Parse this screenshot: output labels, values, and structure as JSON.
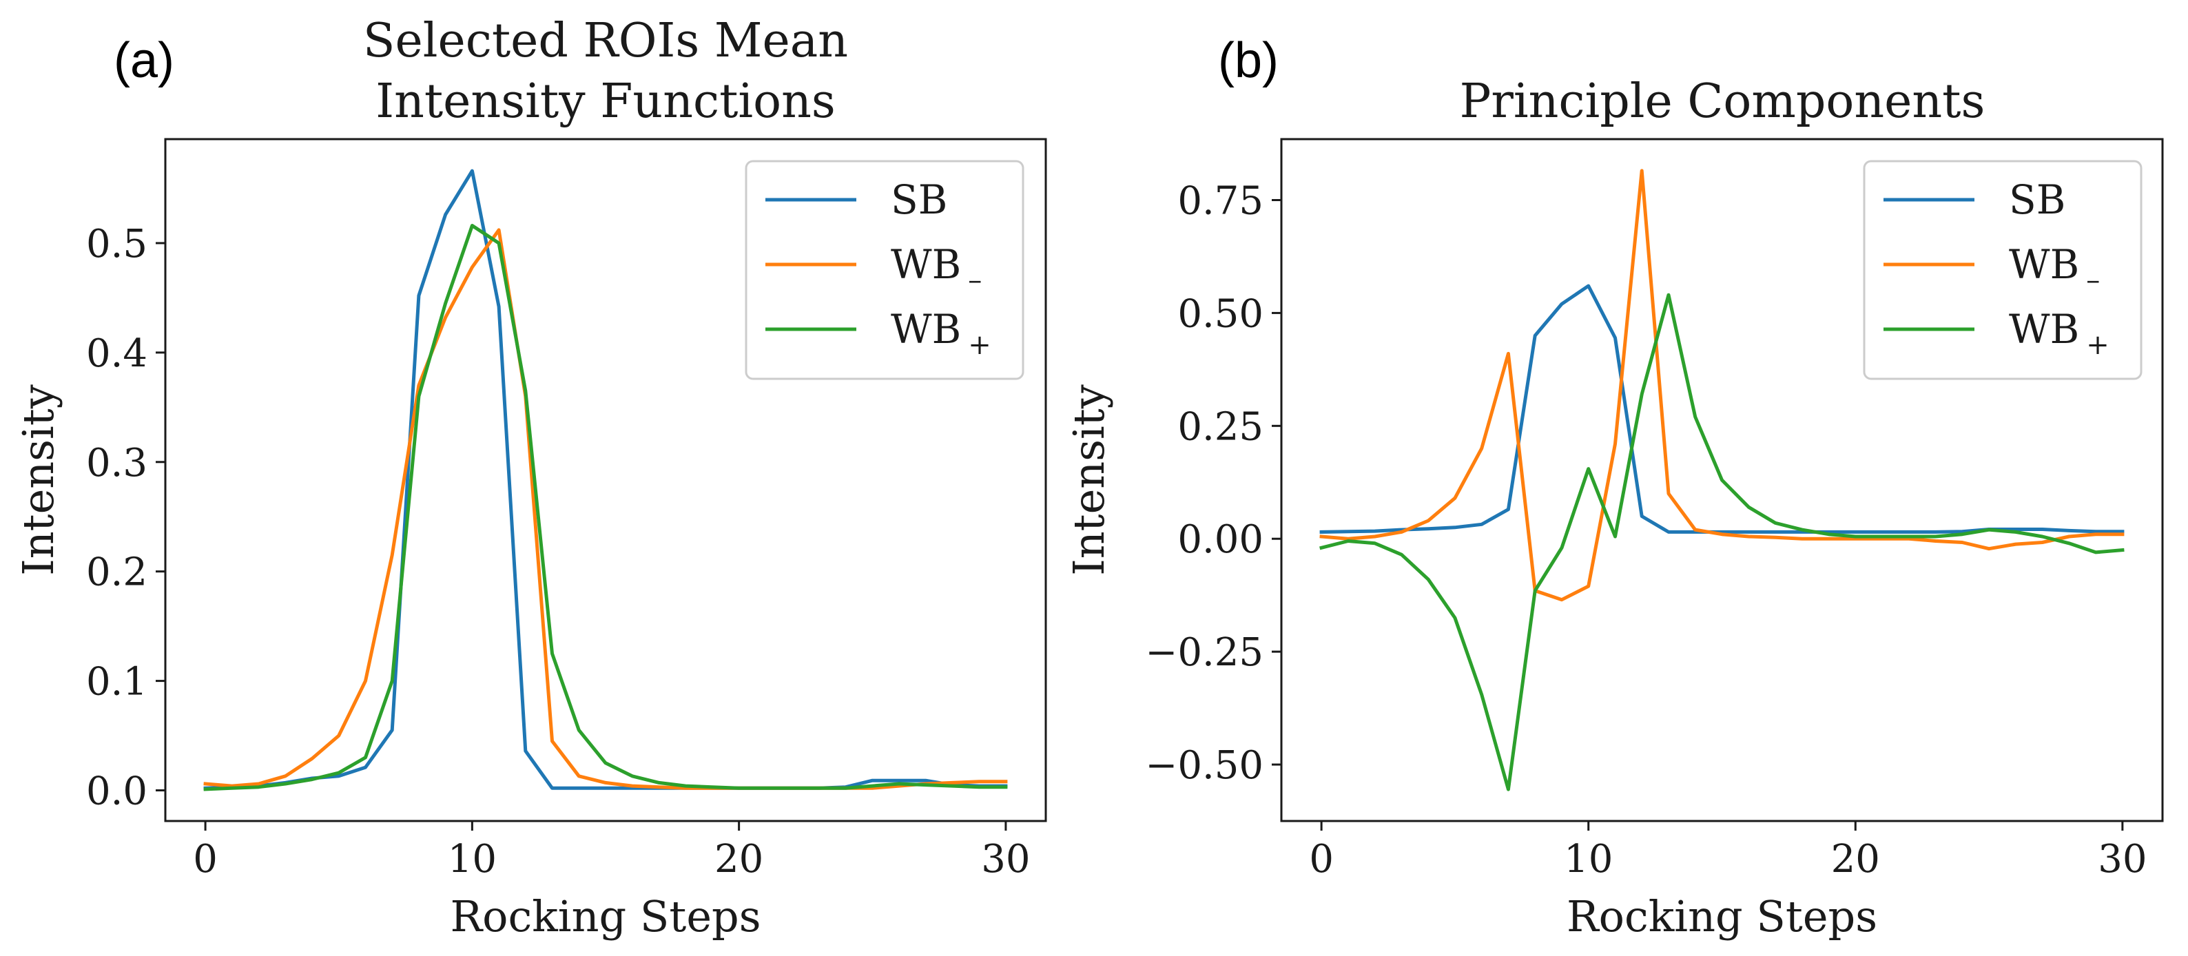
{
  "chart_data": [
    {
      "panel_label": "(a)",
      "type": "line",
      "title": [
        "Selected ROIs Mean",
        "Intensity Functions"
      ],
      "xlabel": "Rocking Steps",
      "ylabel": "Intensity",
      "xlim": [
        -1.5,
        31.5
      ],
      "ylim": [
        -0.028,
        0.595
      ],
      "xticks": [
        0,
        10,
        20,
        30
      ],
      "xtick_labels": [
        "0",
        "10",
        "20",
        "30"
      ],
      "yticks": [
        0.0,
        0.1,
        0.2,
        0.3,
        0.4,
        0.5
      ],
      "ytick_labels": [
        "0.0",
        "0.1",
        "0.2",
        "0.3",
        "0.4",
        "0.5"
      ],
      "grid": false,
      "legend_position": "top-right",
      "x": [
        0,
        1,
        2,
        3,
        4,
        5,
        6,
        7,
        8,
        9,
        10,
        11,
        12,
        13,
        14,
        15,
        16,
        17,
        18,
        19,
        20,
        21,
        22,
        23,
        24,
        25,
        26,
        27,
        28,
        29,
        30
      ],
      "series": [
        {
          "name": "SB",
          "legend_base": "SB",
          "legend_sub": "",
          "color": "#1f77b4",
          "values": [
            0.002,
            0.003,
            0.004,
            0.007,
            0.011,
            0.013,
            0.021,
            0.055,
            0.452,
            0.526,
            0.566,
            0.442,
            0.036,
            0.002,
            0.002,
            0.002,
            0.002,
            0.002,
            0.002,
            0.002,
            0.002,
            0.002,
            0.002,
            0.002,
            0.003,
            0.009,
            0.009,
            0.009,
            0.005,
            0.004,
            0.004
          ]
        },
        {
          "name": "WB-",
          "legend_base": "WB",
          "legend_sub": "–",
          "color": "#ff7f0e",
          "values": [
            0.006,
            0.004,
            0.006,
            0.013,
            0.029,
            0.05,
            0.1,
            0.215,
            0.37,
            0.432,
            0.478,
            0.512,
            0.36,
            0.045,
            0.013,
            0.007,
            0.004,
            0.003,
            0.002,
            0.002,
            0.002,
            0.002,
            0.002,
            0.002,
            0.002,
            0.002,
            0.004,
            0.006,
            0.007,
            0.008,
            0.008
          ]
        },
        {
          "name": "WB+",
          "legend_base": "WB",
          "legend_sub": "+",
          "color": "#2ca02c",
          "values": [
            0.001,
            0.002,
            0.003,
            0.006,
            0.01,
            0.016,
            0.03,
            0.1,
            0.36,
            0.445,
            0.516,
            0.5,
            0.365,
            0.125,
            0.055,
            0.025,
            0.013,
            0.007,
            0.004,
            0.003,
            0.002,
            0.002,
            0.002,
            0.002,
            0.002,
            0.004,
            0.006,
            0.005,
            0.004,
            0.003,
            0.003
          ]
        }
      ]
    },
    {
      "panel_label": "(b)",
      "type": "line",
      "title": [
        "Principle Components"
      ],
      "xlabel": "Rocking Steps",
      "ylabel": "Intensity",
      "xlim": [
        -1.5,
        31.5
      ],
      "ylim": [
        -0.625,
        0.885
      ],
      "xticks": [
        0,
        10,
        20,
        30
      ],
      "xtick_labels": [
        "0",
        "10",
        "20",
        "30"
      ],
      "yticks": [
        -0.5,
        -0.25,
        0.0,
        0.25,
        0.5,
        0.75
      ],
      "ytick_labels": [
        "−0.50",
        "−0.25",
        "0.00",
        "0.25",
        "0.50",
        "0.75"
      ],
      "grid": false,
      "legend_position": "top-right",
      "x": [
        0,
        1,
        2,
        3,
        4,
        5,
        6,
        7,
        8,
        9,
        10,
        11,
        12,
        13,
        14,
        15,
        16,
        17,
        18,
        19,
        20,
        21,
        22,
        23,
        24,
        25,
        26,
        27,
        28,
        29,
        30
      ],
      "series": [
        {
          "name": "SB",
          "legend_base": "SB",
          "legend_sub": "",
          "color": "#1f77b4",
          "values": [
            0.015,
            0.016,
            0.017,
            0.02,
            0.022,
            0.025,
            0.032,
            0.065,
            0.45,
            0.52,
            0.56,
            0.445,
            0.05,
            0.015,
            0.015,
            0.015,
            0.015,
            0.015,
            0.015,
            0.015,
            0.015,
            0.015,
            0.015,
            0.015,
            0.016,
            0.021,
            0.021,
            0.021,
            0.018,
            0.016,
            0.016
          ]
        },
        {
          "name": "WB-",
          "legend_base": "WB",
          "legend_sub": "–",
          "color": "#ff7f0e",
          "values": [
            0.005,
            0.0,
            0.005,
            0.015,
            0.04,
            0.09,
            0.2,
            0.41,
            -0.115,
            -0.135,
            -0.105,
            0.21,
            0.815,
            0.1,
            0.02,
            0.01,
            0.005,
            0.003,
            0.0,
            0.0,
            0.0,
            0.0,
            0.0,
            -0.005,
            -0.008,
            -0.022,
            -0.012,
            -0.008,
            0.005,
            0.01,
            0.01
          ]
        },
        {
          "name": "WB+",
          "legend_base": "WB",
          "legend_sub": "+",
          "color": "#2ca02c",
          "values": [
            -0.02,
            -0.005,
            -0.01,
            -0.035,
            -0.09,
            -0.175,
            -0.345,
            -0.555,
            -0.115,
            -0.02,
            0.155,
            0.005,
            0.32,
            0.54,
            0.27,
            0.13,
            0.07,
            0.035,
            0.02,
            0.01,
            0.005,
            0.005,
            0.005,
            0.005,
            0.01,
            0.02,
            0.015,
            0.005,
            -0.01,
            -0.03,
            -0.025
          ]
        }
      ]
    }
  ]
}
